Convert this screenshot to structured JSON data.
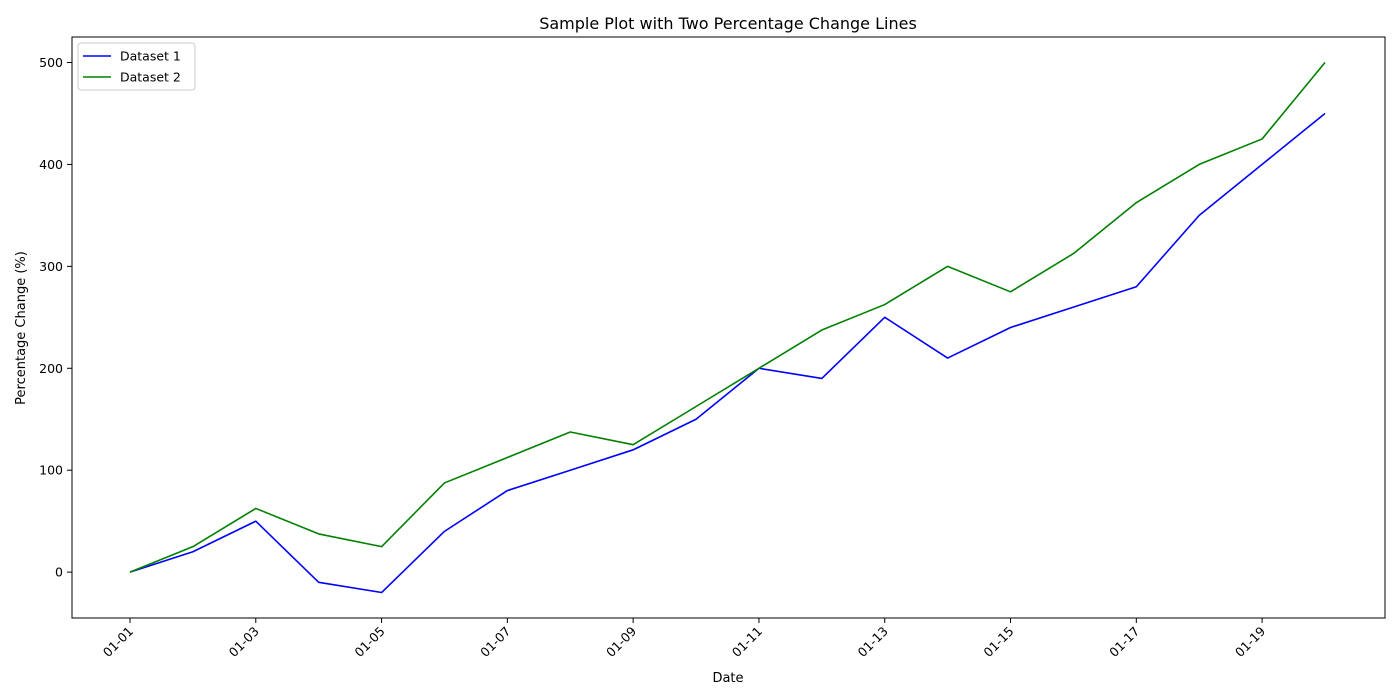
{
  "chart_data": {
    "type": "line",
    "title": "Sample Plot with Two Percentage Change Lines",
    "xlabel": "Date",
    "ylabel": "Percentage Change (%)",
    "x": [
      "01-01",
      "01-02",
      "01-03",
      "01-04",
      "01-05",
      "01-06",
      "01-07",
      "01-08",
      "01-09",
      "01-10",
      "01-11",
      "01-12",
      "01-13",
      "01-14",
      "01-15",
      "01-16",
      "01-17",
      "01-18",
      "01-19",
      "01-20"
    ],
    "x_tick_labels": [
      "01-01",
      "01-03",
      "01-05",
      "01-07",
      "01-09",
      "01-11",
      "01-13",
      "01-15",
      "01-17",
      "01-19"
    ],
    "y_ticks": [
      0,
      100,
      200,
      300,
      400,
      500
    ],
    "ylim": [
      -45,
      525
    ],
    "grid": false,
    "legend_position": "top-left",
    "series": [
      {
        "name": "Dataset 1",
        "color": "#0000ff",
        "values": [
          0,
          20,
          50,
          -10,
          -20,
          40,
          80,
          100,
          120,
          150,
          200,
          190,
          250,
          210,
          240,
          260,
          280,
          350,
          400,
          450
        ]
      },
      {
        "name": "Dataset 2",
        "color": "#008000",
        "values": [
          0,
          25,
          62.5,
          37.5,
          25,
          87.5,
          112.5,
          137.5,
          125,
          162.5,
          200,
          237.5,
          262.5,
          300,
          275,
          312.5,
          362.5,
          400,
          425,
          500
        ]
      }
    ]
  }
}
